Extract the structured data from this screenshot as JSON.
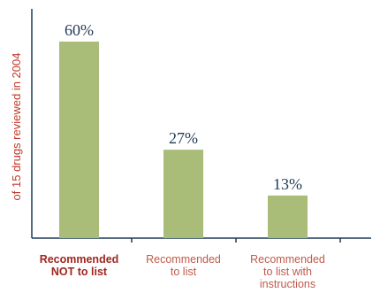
{
  "chart_data": {
    "type": "bar",
    "categories": [
      {
        "lines": [
          "Recommended",
          "NOT to list"
        ],
        "emphasis": true
      },
      {
        "lines": [
          "Recommended",
          "to list"
        ],
        "emphasis": false
      },
      {
        "lines": [
          "Recommended",
          "to list with",
          "instructions"
        ],
        "emphasis": false
      }
    ],
    "values": [
      60,
      27,
      13
    ],
    "value_labels": [
      "60%",
      "27%",
      "13%"
    ],
    "ylabel": "of 15 drugs reviewed in 2004",
    "ylim": [
      0,
      70
    ],
    "grid": false,
    "legend": "none"
  },
  "colors": {
    "bar": "#a9bd78",
    "axis": "#1f3a57",
    "value_text": "#1f3a57",
    "label_text": "#c05a4a",
    "emphasis_text": "#a0261e",
    "ylabel_text": "#c0392b"
  }
}
